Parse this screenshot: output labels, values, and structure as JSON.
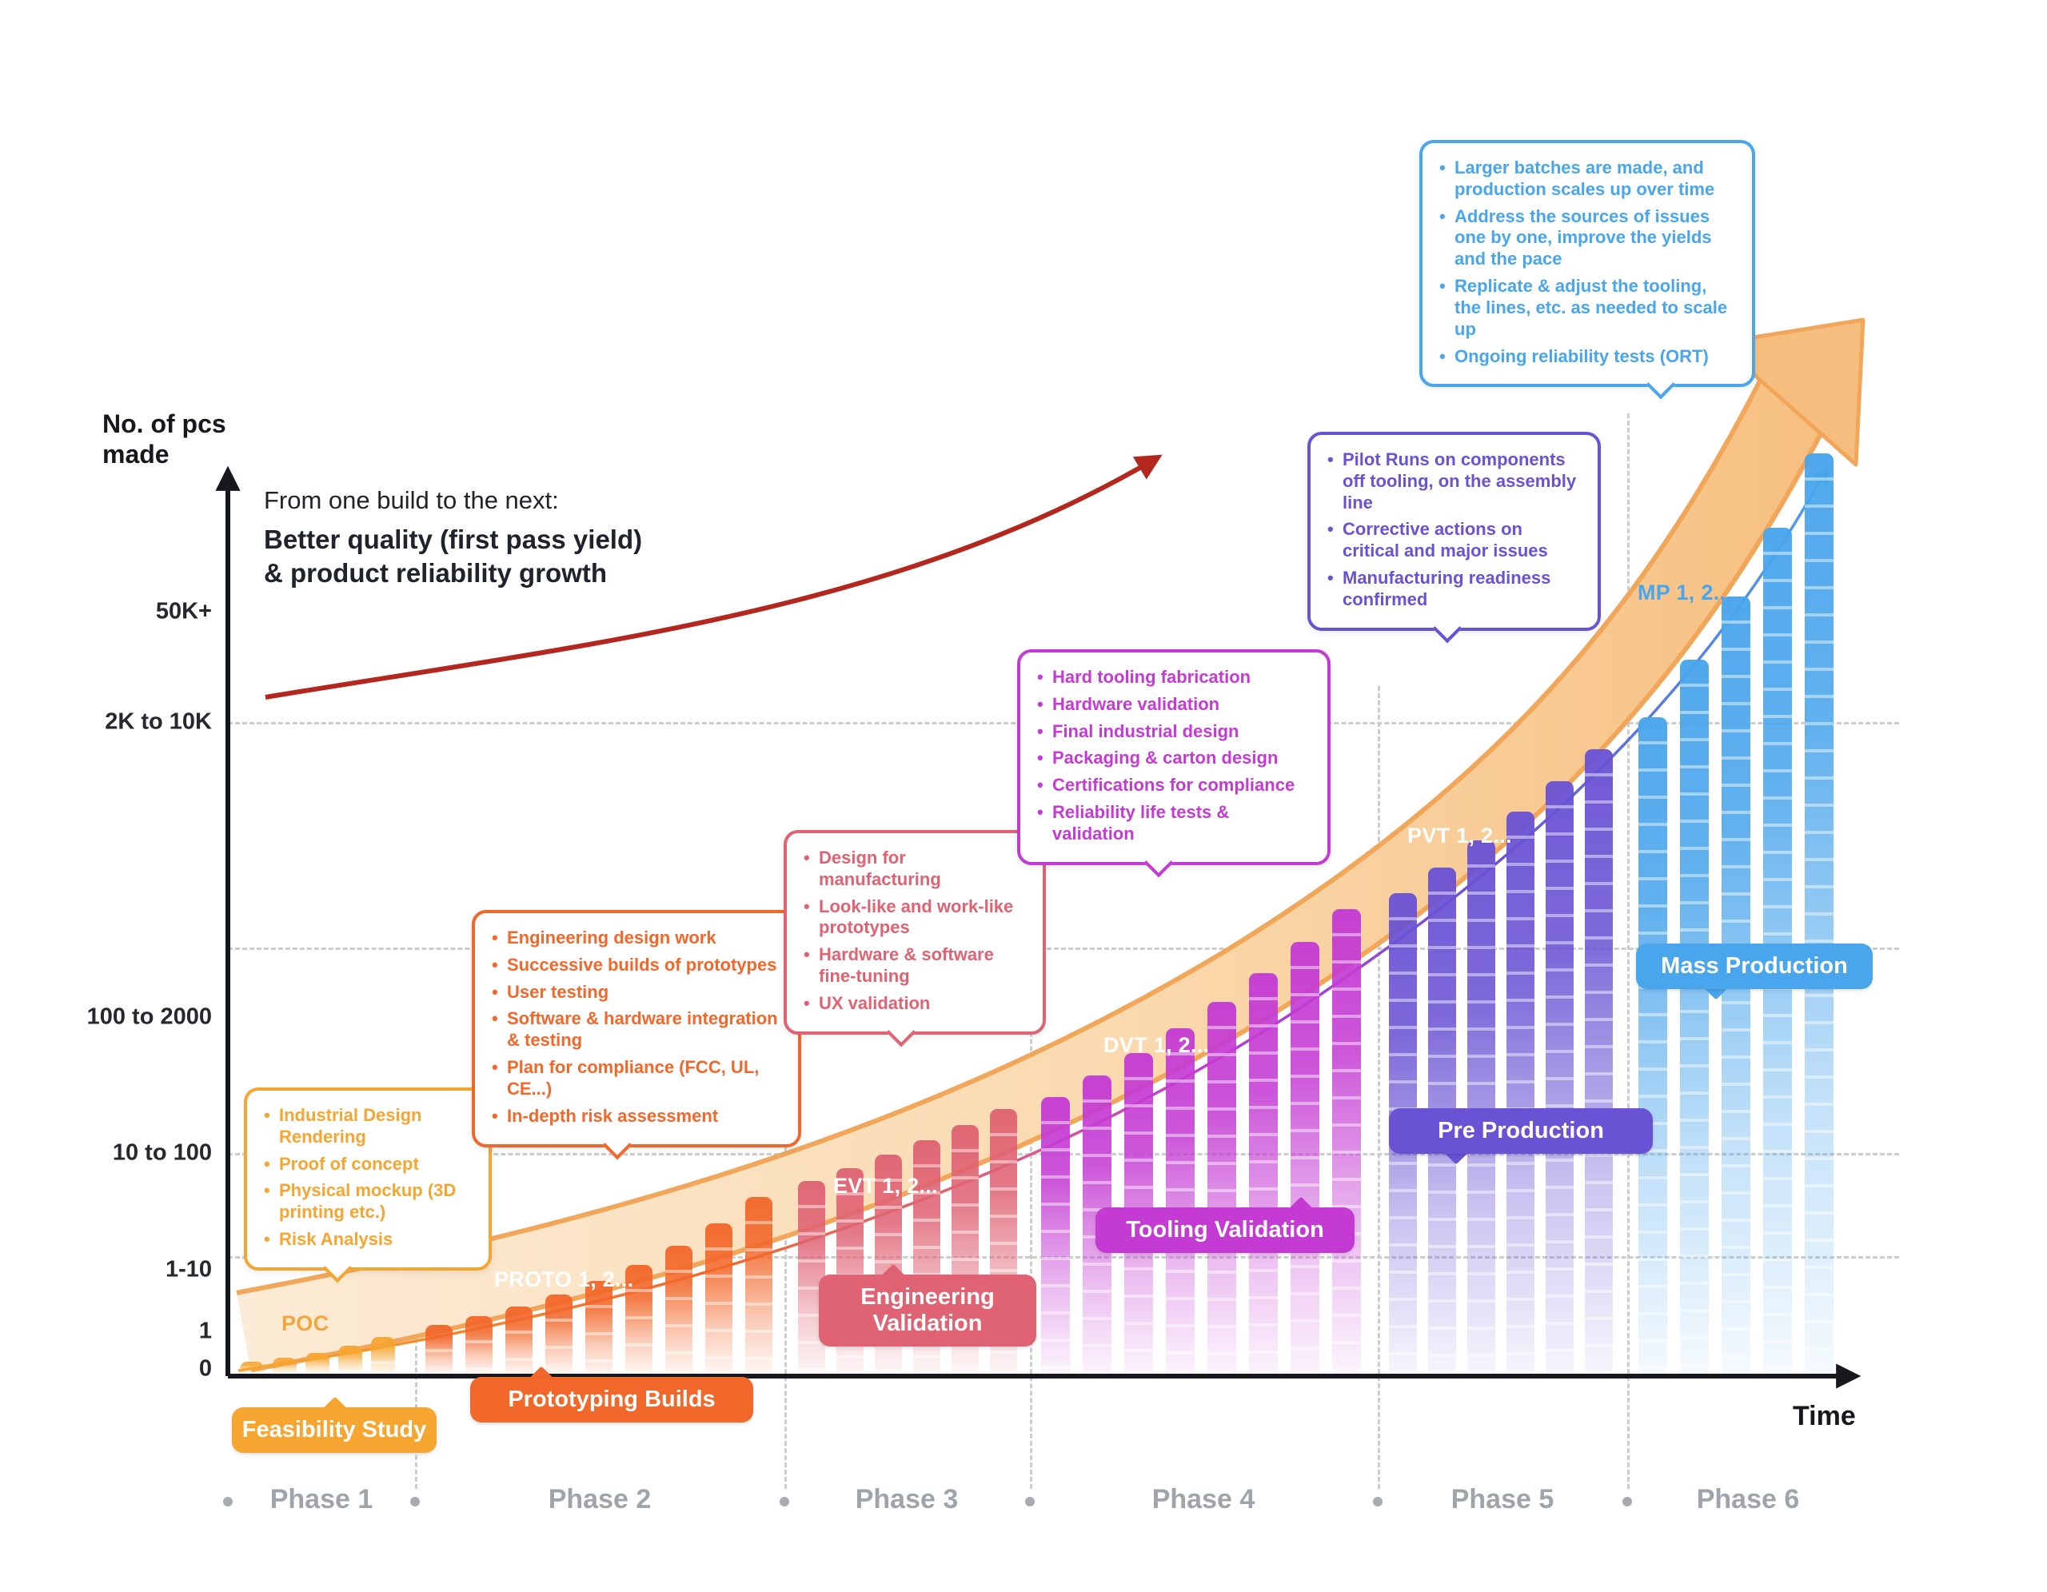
{
  "annotation": {
    "line1": "From one build to the next:",
    "line2": "Better quality (first pass yield)",
    "line3": "& product reliability growth"
  },
  "y_axis": {
    "title_line1": "No. of pcs",
    "title_line2": "made",
    "labels": [
      "50K+",
      "2K to 10K",
      "100 to 2000",
      "10 to 100",
      "1-10",
      "1",
      "0"
    ]
  },
  "x_axis": {
    "title": "Time",
    "phases": [
      "Phase 1",
      "Phase 2",
      "Phase 3",
      "Phase 4",
      "Phase 5",
      "Phase 6"
    ]
  },
  "colors": {
    "axis": "#16181D",
    "grid": "#CDCDCD",
    "phase_label": "#9FA4AA",
    "red_arrow": "#B3271E",
    "band_edge": "#F2A65A",
    "band_fill_start": "#FCEBD6",
    "band_fill_mid": "#FAD9AE",
    "band_fill_end": "#F6BE7E"
  },
  "stages": [
    {
      "name": "Feasibility Study",
      "series_label": "POC",
      "series_label_color": "#F3A63F",
      "color": "#F6A531",
      "callout": [
        "Industrial Design Rendering",
        "Proof of concept",
        "Physical mockup (3D printing etc.)",
        "Risk Analysis"
      ],
      "bars": {
        "count": 5,
        "min_h": 14,
        "max_h": 45
      }
    },
    {
      "name": "Prototyping Builds",
      "series_label": "PROTO 1, 2...",
      "series_label_color": "#FFFFFF",
      "color": "#F2672A",
      "callout": [
        "Engineering design work",
        "Successive builds of prototypes",
        "User testing",
        "Software & hardware integration & testing",
        "Plan for compliance (FCC, UL, CE...)",
        "In-depth risk assessment"
      ],
      "bars": {
        "count": 9,
        "min_h": 60,
        "max_h": 220
      }
    },
    {
      "name": "Engineering Validation",
      "series_label": "EVT 1, 2...",
      "series_label_color": "#FFFFFF",
      "color": "#DF6373",
      "callout": [
        "Design for manufacturing",
        "Look-like and work-like prototypes",
        "Hardware & software fine-tuning",
        "UX validation"
      ],
      "bars": {
        "count": 6,
        "min_h": 240,
        "max_h": 330
      }
    },
    {
      "name": "Tooling Validation",
      "series_label": "DVT 1, 2...",
      "series_label_color": "#FFFFFF",
      "color": "#C43BD3",
      "callout": [
        "Hard tooling fabrication",
        "Hardware validation",
        "Final industrial design",
        "Packaging & carton design",
        "Certifications for compliance",
        "Reliability life tests & validation"
      ],
      "bars": {
        "count": 8,
        "min_h": 345,
        "max_h": 580
      }
    },
    {
      "name": "Pre Production",
      "series_label": "PVT 1, 2...",
      "series_label_color": "#FFFFFF",
      "color": "#6A52D4",
      "callout": [
        "Pilot Runs on components off tooling, on the assembly line",
        "Corrective actions on critical and major issues",
        "Manufacturing readiness confirmed"
      ],
      "bars": {
        "count": 6,
        "min_h": 600,
        "max_h": 780
      }
    },
    {
      "name": "Mass Production",
      "series_label": "MP 1, 2...",
      "series_label_color": "#49A5EC",
      "color": "#49A5EC",
      "callout": [
        "Larger batches are made, and production scales up over time",
        "Address the sources of issues one by one, improve the yields and the pace",
        "Replicate & adjust the tooling, the lines, etc. as needed to scale up",
        "Ongoing reliability tests (ORT)"
      ],
      "bars": {
        "count": 5,
        "min_h": 820,
        "max_h": 1150
      }
    }
  ]
}
